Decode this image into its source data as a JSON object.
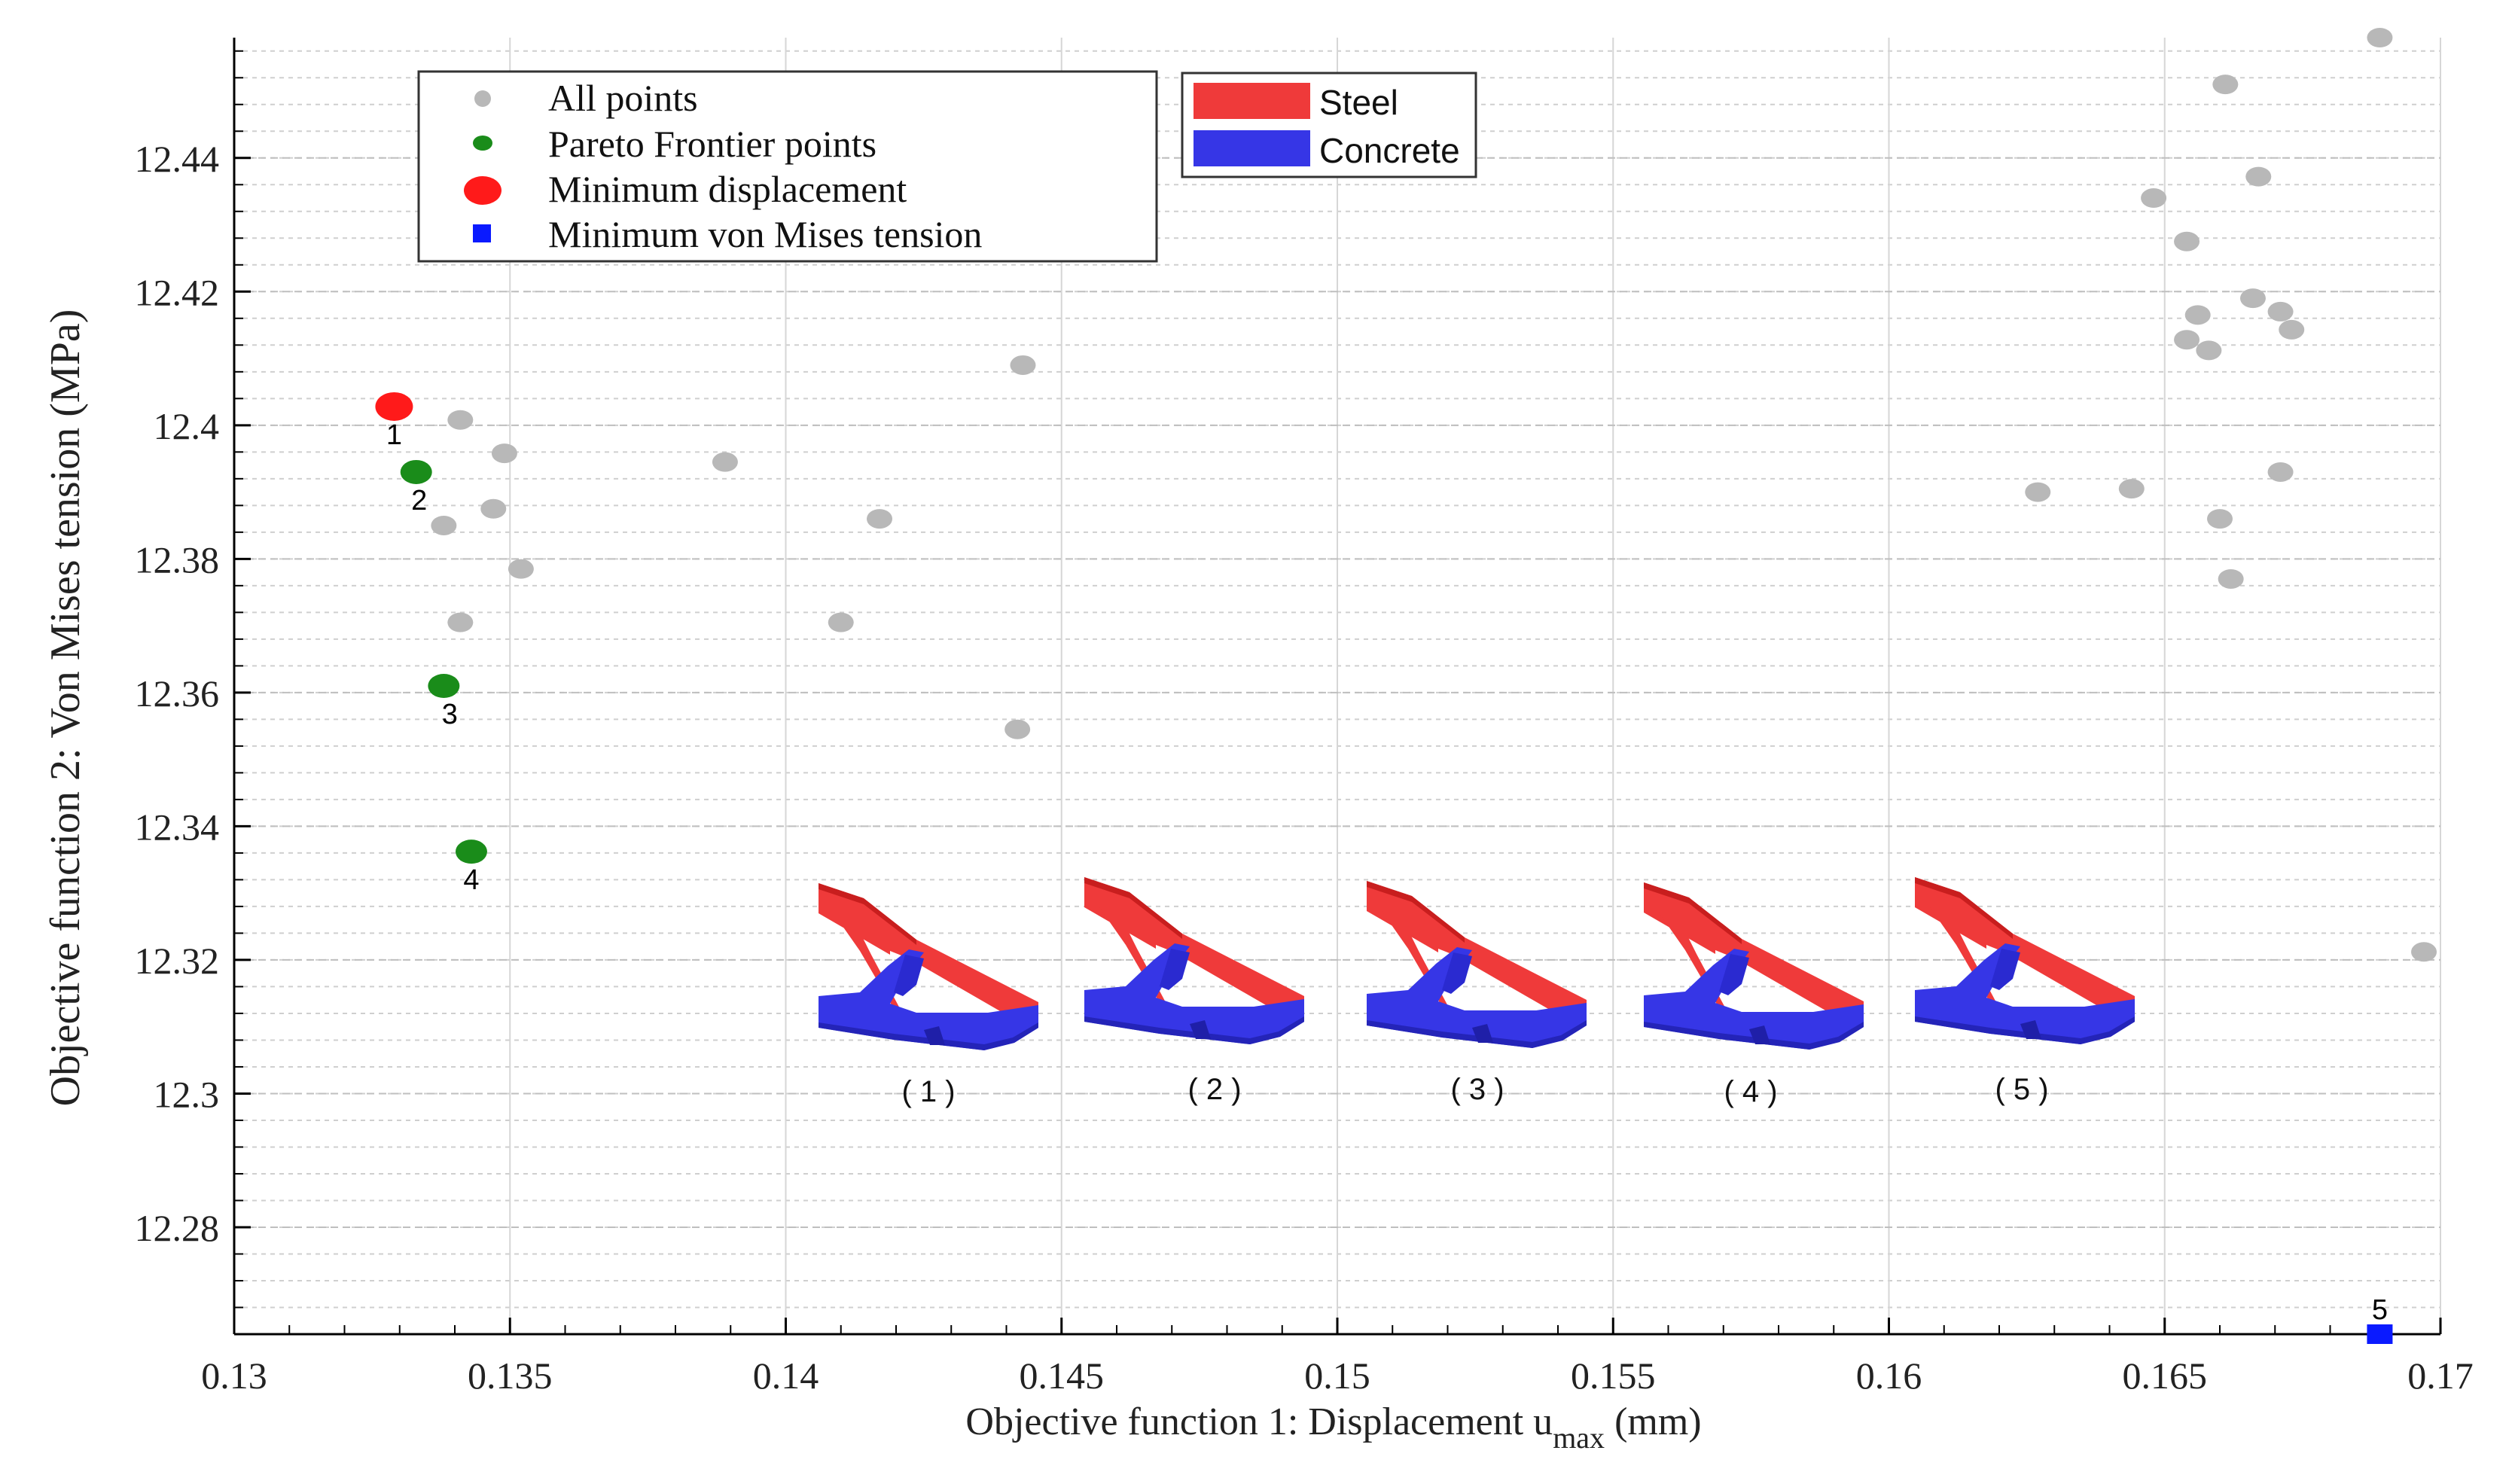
{
  "chart_data": {
    "type": "scatter",
    "xlabel_main": "Objective function 1: Displacement u",
    "xlabel_sub": "max",
    "xlabel_unit": " (mm)",
    "ylabel": "Objective function 2: Von Mises tension (MPa)",
    "xlim": [
      0.13,
      0.17
    ],
    "ylim": [
      12.264,
      12.458
    ],
    "x_ticks": [
      0.13,
      0.135,
      0.14,
      0.145,
      0.15,
      0.155,
      0.16,
      0.165,
      0.17
    ],
    "x_tick_labels": [
      "0.13",
      "0.135",
      "0.14",
      "0.145",
      "0.15",
      "0.155",
      "0.16",
      "0.165",
      "0.17"
    ],
    "y_ticks": [
      12.28,
      12.3,
      12.32,
      12.34,
      12.36,
      12.38,
      12.4,
      12.42,
      12.44
    ],
    "y_tick_labels": [
      "12.28",
      "12.3",
      "12.32",
      "12.34",
      "12.36",
      "12.38",
      "12.4",
      "12.42",
      "12.44"
    ],
    "grid": true,
    "legend_position": "top-left",
    "legend": [
      {
        "label": "All points",
        "marker": "small-circle",
        "color": "#b8b8b8"
      },
      {
        "label": "Pareto Frontier points",
        "marker": "small-circle",
        "color": "#1a8c1a"
      },
      {
        "label": "Minimum displacement",
        "marker": "large-circle",
        "color": "#ff1a1a"
      },
      {
        "label": "Minimum von Mises tension",
        "marker": "square",
        "color": "#0a1aff"
      }
    ],
    "series": [
      {
        "name": "All points",
        "color": "#b8b8b8",
        "points": [
          [
            0.1341,
            12.4008
          ],
          [
            0.1349,
            12.3958
          ],
          [
            0.1338,
            12.385
          ],
          [
            0.1347,
            12.3875
          ],
          [
            0.1352,
            12.3785
          ],
          [
            0.1341,
            12.3705
          ],
          [
            0.1389,
            12.3945
          ],
          [
            0.1417,
            12.386
          ],
          [
            0.141,
            12.3705
          ],
          [
            0.1443,
            12.409
          ],
          [
            0.1442,
            12.3545
          ],
          [
            0.1689,
            12.458
          ],
          [
            0.1661,
            12.451
          ],
          [
            0.1667,
            12.4372
          ],
          [
            0.1648,
            12.434
          ],
          [
            0.1654,
            12.4275
          ],
          [
            0.1666,
            12.419
          ],
          [
            0.1656,
            12.4165
          ],
          [
            0.1671,
            12.417
          ],
          [
            0.1654,
            12.4128
          ],
          [
            0.1658,
            12.4112
          ],
          [
            0.1673,
            12.4143
          ],
          [
            0.1627,
            12.39
          ],
          [
            0.1644,
            12.3905
          ],
          [
            0.1671,
            12.393
          ],
          [
            0.166,
            12.386
          ],
          [
            0.1662,
            12.377
          ],
          [
            0.1697,
            12.3212
          ]
        ]
      },
      {
        "name": "Pareto Frontier points",
        "color": "#1a8c1a",
        "points": [
          [
            0.1333,
            12.393
          ],
          [
            0.1338,
            12.361
          ],
          [
            0.1343,
            12.3362
          ]
        ]
      },
      {
        "name": "Minimum displacement",
        "color": "#ff1a1a",
        "points": [
          [
            0.1329,
            12.4028
          ]
        ]
      },
      {
        "name": "Minimum von Mises tension",
        "color": "#0a1aff",
        "points": [
          [
            0.1689,
            12.264
          ]
        ]
      }
    ],
    "point_labels": [
      {
        "text": "1",
        "x": 0.1329,
        "y": 12.4028
      },
      {
        "text": "2",
        "x": 0.1333,
        "y": 12.393
      },
      {
        "text": "3",
        "x": 0.1338,
        "y": 12.361
      },
      {
        "text": "4",
        "x": 0.1343,
        "y": 12.3362
      },
      {
        "text": "5",
        "x": 0.1689,
        "y": 12.264
      }
    ],
    "material_legend": [
      {
        "label": "Steel",
        "color": "#ef3a3a"
      },
      {
        "label": "Concrete",
        "color": "#3636e6"
      }
    ],
    "inset_labels": [
      "( 1 )",
      "( 2 )",
      "( 3 )",
      "( 4 )",
      "( 5 )"
    ]
  }
}
